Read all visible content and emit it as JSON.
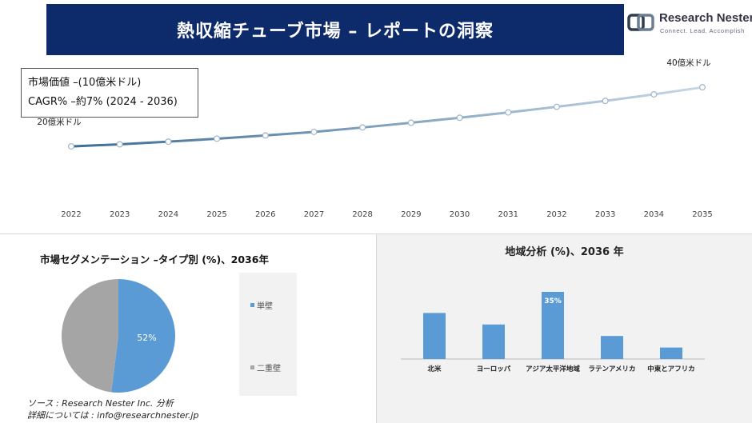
{
  "header": {
    "title": "熱収縮チューブ市場 – レポートの洞察",
    "logo_name": "Research Nester",
    "logo_tagline": "Connect. Lead. Accomplish"
  },
  "market_box": {
    "line1": "市場価値 –(10億米ドル)",
    "line2": "CAGR% –約7% (2024 - 2036)"
  },
  "segment": {
    "title": "市場セグメンテーション –タイプ別 (%)、2036年"
  },
  "region": {
    "title": "地域分析 (%)、2036 年"
  },
  "source": {
    "line1": "ソース : Research Nester Inc. 分析",
    "line2": "詳細については : info@researchnester.jp"
  },
  "colors": {
    "banner": "#0d2a6b",
    "line_start": "#3e6d94",
    "line_end": "#c7d7e6",
    "pie_primary": "#5b9bd5",
    "pie_secondary": "#a5a5a5",
    "bar": "#5b9bd5"
  },
  "chart_data": [
    {
      "type": "line",
      "x": [
        "2022",
        "2023",
        "2024",
        "2025",
        "2026",
        "2027",
        "2028",
        "2029",
        "2030",
        "2031",
        "2032",
        "2033",
        "2034",
        "2035"
      ],
      "values": [
        20,
        20.7,
        21.6,
        22.6,
        23.7,
        24.9,
        26.4,
        28.0,
        29.7,
        31.5,
        33.4,
        35.4,
        37.6,
        40
      ],
      "start_label": "20億米ドル",
      "end_label": "40億米ドル",
      "ylim": [
        0,
        46
      ],
      "grid": false
    },
    {
      "type": "pie",
      "slices": [
        {
          "name": "単壁",
          "value": 52,
          "label": "52%"
        },
        {
          "name": "二重壁",
          "value": 48,
          "label": ""
        }
      ]
    },
    {
      "type": "bar",
      "categories": [
        "北米",
        "ヨーロッパ",
        "アジア太平洋地域",
        "ラテンアメリカ",
        "中東とアフリカ"
      ],
      "values": [
        24,
        18,
        35,
        12,
        6
      ],
      "data_labels": [
        "",
        "",
        "35%",
        "",
        ""
      ],
      "ylim": [
        0,
        40
      ]
    }
  ]
}
